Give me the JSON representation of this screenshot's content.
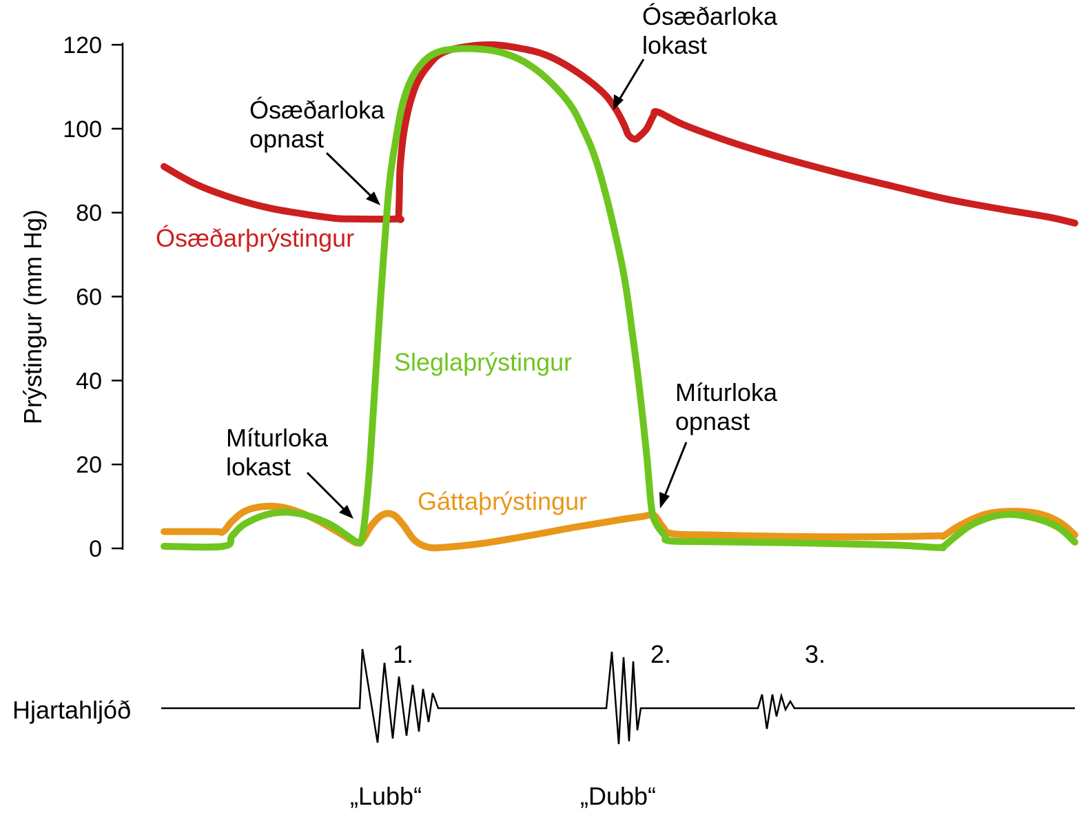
{
  "chart_data": {
    "type": "line",
    "title": "",
    "xlabel": "",
    "ylabel": "Prýstingur (mm Hg)",
    "ylim": [
      0,
      120
    ],
    "yticks": [
      0,
      20,
      40,
      60,
      80,
      100,
      120
    ],
    "grid": false,
    "series": [
      {
        "name": "Ósæðarþrýstingur",
        "color": "#cc1f1f",
        "points": [
          [
            0.0,
            91
          ],
          [
            0.03,
            87.3
          ],
          [
            0.06,
            84.6
          ],
          [
            0.09,
            82.5
          ],
          [
            0.12,
            80.9
          ],
          [
            0.15,
            79.8
          ],
          [
            0.175,
            79
          ],
          [
            0.19,
            78.6
          ],
          [
            0.205,
            78.5
          ],
          [
            0.2555,
            78.5
          ],
          [
            0.2575,
            79
          ],
          [
            0.2585,
            85
          ],
          [
            0.259,
            90
          ],
          [
            0.261,
            95
          ],
          [
            0.264,
            100
          ],
          [
            0.27,
            106
          ],
          [
            0.278,
            111
          ],
          [
            0.29,
            115
          ],
          [
            0.305,
            118
          ],
          [
            0.33,
            119.5
          ],
          [
            0.36,
            120
          ],
          [
            0.39,
            119.2
          ],
          [
            0.42,
            117.5
          ],
          [
            0.45,
            114
          ],
          [
            0.48,
            109
          ],
          [
            0.495,
            105
          ],
          [
            0.505,
            101
          ],
          [
            0.51,
            98.5
          ],
          [
            0.517,
            97.5
          ],
          [
            0.522,
            98.2
          ],
          [
            0.53,
            100
          ],
          [
            0.537,
            103
          ],
          [
            0.542,
            104
          ],
          [
            0.57,
            101
          ],
          [
            0.62,
            97
          ],
          [
            0.68,
            93
          ],
          [
            0.74,
            89.5
          ],
          [
            0.8,
            86.3
          ],
          [
            0.86,
            83.2
          ],
          [
            0.92,
            80.8
          ],
          [
            0.97,
            79
          ],
          [
            1.0,
            77.5
          ]
        ]
      },
      {
        "name": "Sleglaþrýstingur",
        "color": "#6ec51f",
        "points": [
          [
            0.0,
            0.5
          ],
          [
            0.065,
            0.5
          ],
          [
            0.075,
            3
          ],
          [
            0.09,
            6
          ],
          [
            0.12,
            8.4
          ],
          [
            0.15,
            8.2
          ],
          [
            0.18,
            6
          ],
          [
            0.2,
            3.2
          ],
          [
            0.212,
            1.5
          ],
          [
            0.217,
            2
          ],
          [
            0.221,
            8
          ],
          [
            0.226,
            20
          ],
          [
            0.232,
            40
          ],
          [
            0.238,
            60
          ],
          [
            0.243,
            75
          ],
          [
            0.248,
            88
          ],
          [
            0.255,
            98
          ],
          [
            0.262,
            106
          ],
          [
            0.272,
            112
          ],
          [
            0.285,
            116
          ],
          [
            0.3,
            118.2
          ],
          [
            0.32,
            119
          ],
          [
            0.345,
            119
          ],
          [
            0.37,
            118.2
          ],
          [
            0.395,
            116
          ],
          [
            0.42,
            112
          ],
          [
            0.445,
            106
          ],
          [
            0.46,
            100
          ],
          [
            0.475,
            92
          ],
          [
            0.49,
            80
          ],
          [
            0.505,
            65
          ],
          [
            0.515,
            50
          ],
          [
            0.522,
            38
          ],
          [
            0.53,
            22
          ],
          [
            0.535,
            10
          ],
          [
            0.54,
            6
          ],
          [
            0.55,
            3
          ],
          [
            0.555,
            1.8
          ],
          [
            0.6,
            1.6
          ],
          [
            0.7,
            1.3
          ],
          [
            0.8,
            0.8
          ],
          [
            0.85,
            0.2
          ],
          [
            0.856,
            0.5
          ],
          [
            0.87,
            3
          ],
          [
            0.89,
            6
          ],
          [
            0.92,
            8
          ],
          [
            0.95,
            7.5
          ],
          [
            0.98,
            5.2
          ],
          [
            1.0,
            1.5
          ]
        ]
      },
      {
        "name": "Gáttaþrýstingur",
        "color": "#e8971a",
        "points": [
          [
            0.0,
            4
          ],
          [
            0.055,
            4
          ],
          [
            0.065,
            4
          ],
          [
            0.075,
            6.5
          ],
          [
            0.09,
            9
          ],
          [
            0.11,
            10
          ],
          [
            0.13,
            9.8
          ],
          [
            0.15,
            8.5
          ],
          [
            0.17,
            6.5
          ],
          [
            0.19,
            4
          ],
          [
            0.205,
            2
          ],
          [
            0.212,
            1.3
          ],
          [
            0.218,
            2
          ],
          [
            0.228,
            5.5
          ],
          [
            0.24,
            8
          ],
          [
            0.252,
            8
          ],
          [
            0.263,
            5.5
          ],
          [
            0.275,
            2
          ],
          [
            0.29,
            0.3
          ],
          [
            0.31,
            0.3
          ],
          [
            0.35,
            1.2
          ],
          [
            0.4,
            3
          ],
          [
            0.45,
            5
          ],
          [
            0.5,
            6.8
          ],
          [
            0.525,
            7.6
          ],
          [
            0.535,
            8
          ],
          [
            0.54,
            7.5
          ],
          [
            0.548,
            5
          ],
          [
            0.558,
            3.5
          ],
          [
            0.6,
            3.2
          ],
          [
            0.7,
            2.8
          ],
          [
            0.8,
            2.8
          ],
          [
            0.85,
            3
          ],
          [
            0.856,
            3
          ],
          [
            0.87,
            5
          ],
          [
            0.89,
            7.2
          ],
          [
            0.91,
            8.5
          ],
          [
            0.94,
            8.8
          ],
          [
            0.965,
            8
          ],
          [
            0.985,
            6
          ],
          [
            1.0,
            3.2
          ]
        ]
      }
    ],
    "annotations": [
      {
        "name": "aortic-open",
        "lines": [
          "Ósæðarloka",
          "opnast"
        ]
      },
      {
        "name": "aortic-close",
        "lines": [
          "Ósæðarloka",
          "lokast"
        ]
      },
      {
        "name": "mitral-close",
        "lines": [
          "Míturloka",
          "lokast"
        ]
      },
      {
        "name": "mitral-open",
        "lines": [
          "Míturloka",
          "opnast"
        ]
      }
    ],
    "heart_sounds": {
      "label": "Hjartahljóð",
      "sounds": [
        {
          "number": "1.",
          "label": "„Lubb“"
        },
        {
          "number": "2.",
          "label": "„Dubb“"
        },
        {
          "number": "3.",
          "label": ""
        }
      ]
    }
  }
}
